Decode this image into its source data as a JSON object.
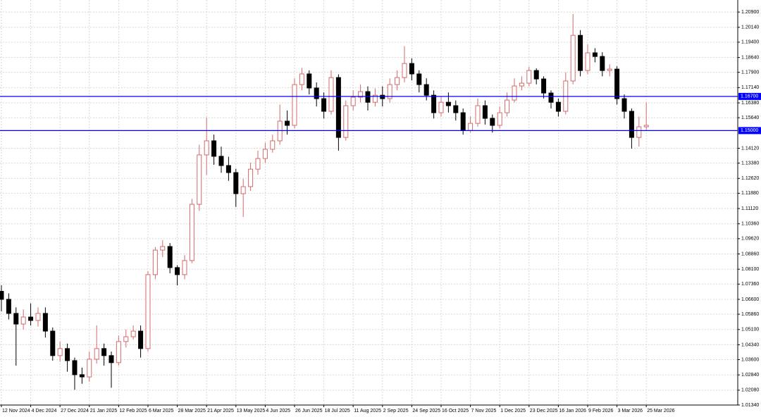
{
  "chart_data": {
    "type": "candlestick",
    "series": {
      "up_color": "#d46a6a",
      "down_color": "#000000",
      "open": [
        1.07,
        1.066,
        1.059,
        1.0537,
        1.0572,
        1.0555,
        1.059,
        1.0502,
        1.038,
        1.0415,
        1.0355,
        1.0285,
        1.0274,
        1.0362,
        1.0415,
        1.038,
        1.0345,
        1.045,
        1.0474,
        1.0502,
        1.0415,
        1.0783,
        1.0905,
        1.0923,
        1.0818,
        1.0783,
        1.0853,
        1.1133,
        1.1379,
        1.1449,
        1.1372,
        1.1326,
        1.1291,
        1.1186,
        1.1221,
        1.1308,
        1.1361,
        1.1407,
        1.1449,
        1.1547,
        1.1526,
        1.1729,
        1.1782,
        1.1712,
        1.1659,
        1.1596,
        1.1764,
        1.1466,
        1.1624,
        1.1666,
        1.1694,
        1.1641,
        1.1676,
        1.1659,
        1.1729,
        1.1764,
        1.1834,
        1.1782,
        1.1729,
        1.1676,
        1.1589,
        1.1641,
        1.1624,
        1.1589,
        1.1501,
        1.1536,
        1.1624,
        1.1561,
        1.1526,
        1.1589,
        1.1652,
        1.1722,
        1.1736,
        1.1799,
        1.1757,
        1.1687,
        1.1641,
        1.1596,
        1.1747,
        1.1974,
        1.1799,
        1.1887,
        1.1869,
        1.1799,
        1.1806,
        1.1659,
        1.1596,
        1.1466,
        1.1519
      ],
      "high": [
        1.073,
        1.069,
        1.062,
        1.061,
        1.064,
        1.062,
        1.062,
        1.052,
        1.045,
        1.044,
        1.037,
        1.032,
        1.04,
        1.053,
        1.044,
        1.04,
        1.048,
        1.051,
        1.053,
        1.053,
        1.08,
        1.092,
        1.0955,
        1.094,
        1.083,
        1.088,
        1.116,
        1.143,
        1.1565,
        1.148,
        1.142,
        1.137,
        1.131,
        1.126,
        1.134,
        1.14,
        1.144,
        1.148,
        1.163,
        1.16,
        1.176,
        1.1812,
        1.18,
        1.174,
        1.169,
        1.18,
        1.178,
        1.165,
        1.17,
        1.173,
        1.172,
        1.171,
        1.172,
        1.176,
        1.18,
        1.192,
        1.186,
        1.18,
        1.176,
        1.17,
        1.167,
        1.169,
        1.165,
        1.161,
        1.157,
        1.166,
        1.165,
        1.158,
        1.162,
        1.169,
        1.176,
        1.177,
        1.1818,
        1.181,
        1.177,
        1.17,
        1.166,
        1.179,
        1.208,
        1.2,
        1.193,
        1.191,
        1.189,
        1.183,
        1.182,
        1.168,
        1.161,
        1.157,
        1.164
      ],
      "low": [
        1.06,
        1.056,
        1.033,
        1.051,
        1.053,
        1.0525,
        1.047,
        1.0355,
        1.035,
        1.03,
        1.021,
        1.024,
        1.025,
        1.034,
        1.033,
        1.022,
        1.033,
        1.042,
        1.046,
        1.037,
        1.04,
        1.076,
        1.087,
        1.079,
        1.073,
        1.076,
        1.084,
        1.11,
        1.128,
        1.133,
        1.129,
        1.125,
        1.112,
        1.107,
        1.12,
        1.128,
        1.134,
        1.139,
        1.143,
        1.148,
        1.151,
        1.17,
        1.168,
        1.162,
        1.156,
        1.158,
        1.14,
        1.145,
        1.16,
        1.164,
        1.16,
        1.162,
        1.162,
        1.164,
        1.17,
        1.174,
        1.175,
        1.169,
        1.165,
        1.156,
        1.157,
        1.159,
        1.155,
        1.148,
        1.149,
        1.152,
        1.153,
        1.149,
        1.151,
        1.157,
        1.164,
        1.17,
        1.172,
        1.173,
        1.166,
        1.161,
        1.157,
        1.158,
        1.173,
        1.177,
        1.178,
        1.184,
        1.177,
        1.177,
        1.163,
        1.156,
        1.141,
        1.142,
        1.15
      ],
      "close": [
        1.066,
        1.059,
        1.0537,
        1.0572,
        1.0555,
        1.059,
        1.0502,
        1.038,
        1.0415,
        1.0355,
        1.0285,
        1.0274,
        1.0362,
        1.0415,
        1.038,
        1.0345,
        1.045,
        1.0474,
        1.0502,
        1.0415,
        1.0783,
        1.0905,
        1.0923,
        1.0818,
        1.0783,
        1.0853,
        1.1133,
        1.1379,
        1.1449,
        1.1372,
        1.1326,
        1.1291,
        1.1186,
        1.1221,
        1.1308,
        1.1361,
        1.1407,
        1.1449,
        1.1547,
        1.1526,
        1.1729,
        1.1782,
        1.1712,
        1.1659,
        1.1596,
        1.1764,
        1.1466,
        1.1624,
        1.1666,
        1.1694,
        1.1641,
        1.1676,
        1.1659,
        1.1729,
        1.1764,
        1.1834,
        1.1782,
        1.1729,
        1.1676,
        1.1589,
        1.1641,
        1.1624,
        1.1589,
        1.1501,
        1.1536,
        1.1624,
        1.1561,
        1.1526,
        1.1589,
        1.1652,
        1.1722,
        1.1736,
        1.1799,
        1.1757,
        1.1687,
        1.1641,
        1.1596,
        1.1747,
        1.1974,
        1.1799,
        1.1887,
        1.1869,
        1.1799,
        1.1806,
        1.1659,
        1.1596,
        1.1466,
        1.1519,
        1.1526
      ]
    },
    "xlim": [
      -0.19,
      100.48
    ],
    "xticks": [
      {
        "value": 0,
        "label": "12 Nov 2024"
      },
      {
        "value": 4,
        "label": "4 Dec 2024"
      },
      {
        "value": 8,
        "label": "27 Dec 2024"
      },
      {
        "value": 12,
        "label": "21 Jan 2025"
      },
      {
        "value": 16,
        "label": "12 Feb 2025"
      },
      {
        "value": 20,
        "label": "6 Mar 2025"
      },
      {
        "value": 24,
        "label": "28 Mar 2025"
      },
      {
        "value": 28,
        "label": "21 Apr 2025"
      },
      {
        "value": 32,
        "label": "13 May 2025"
      },
      {
        "value": 36,
        "label": "4 Jun 2025"
      },
      {
        "value": 40,
        "label": "26 Jun 2025"
      },
      {
        "value": 44,
        "label": "18 Jul 2025"
      },
      {
        "value": 48,
        "label": "11 Aug 2025"
      },
      {
        "value": 52,
        "label": "2 Sep 2025"
      },
      {
        "value": 56,
        "label": "24 Sep 2025"
      },
      {
        "value": 60,
        "label": "16 Oct 2025"
      },
      {
        "value": 64,
        "label": "7 Nov 2025"
      },
      {
        "value": 68,
        "label": "1 Dec 2025"
      },
      {
        "value": 72,
        "label": "23 Dec 2025"
      },
      {
        "value": 76,
        "label": "16 Jan 2026"
      },
      {
        "value": 80,
        "label": "9 Feb 2026"
      },
      {
        "value": 84,
        "label": "3 Mar 2026"
      },
      {
        "value": 88,
        "label": "25 Mar 2026"
      }
    ],
    "ylim": [
      1.0134,
      1.215
    ],
    "yticks": [
      {
        "value": 1.209,
        "label": "1.20900"
      },
      {
        "value": 1.2014,
        "label": "1.20140"
      },
      {
        "value": 1.194,
        "label": "1.19400"
      },
      {
        "value": 1.1864,
        "label": "1.18640"
      },
      {
        "value": 1.179,
        "label": "1.17900"
      },
      {
        "value": 1.1714,
        "label": "1.17140"
      },
      {
        "value": 1.1638,
        "label": "1.16380"
      },
      {
        "value": 1.1564,
        "label": "1.15640"
      },
      {
        "value": 1.1412,
        "label": "1.14120"
      },
      {
        "value": 1.1338,
        "label": "1.13380"
      },
      {
        "value": 1.1262,
        "label": "1.12620"
      },
      {
        "value": 1.1188,
        "label": "1.11880"
      },
      {
        "value": 1.1112,
        "label": "1.11120"
      },
      {
        "value": 1.1036,
        "label": "1.10360"
      },
      {
        "value": 1.0962,
        "label": "1.09620"
      },
      {
        "value": 1.0886,
        "label": "1.08860"
      },
      {
        "value": 1.081,
        "label": "1.08100"
      },
      {
        "value": 1.0736,
        "label": "1.07360"
      },
      {
        "value": 1.066,
        "label": "1.06600"
      },
      {
        "value": 1.0586,
        "label": "1.05860"
      },
      {
        "value": 1.051,
        "label": "1.05100"
      },
      {
        "value": 1.0434,
        "label": "1.04340"
      },
      {
        "value": 1.036,
        "label": "1.03600"
      },
      {
        "value": 1.0284,
        "label": "1.02840"
      },
      {
        "value": 1.0208,
        "label": "1.02080"
      },
      {
        "value": 1.0134,
        "label": "1.01340"
      }
    ],
    "hlines": [
      {
        "value": 1.167,
        "label": "1.16700"
      },
      {
        "value": 1.15,
        "label": "1.15000"
      }
    ],
    "hline_color": "#0000ff",
    "grid": true
  }
}
